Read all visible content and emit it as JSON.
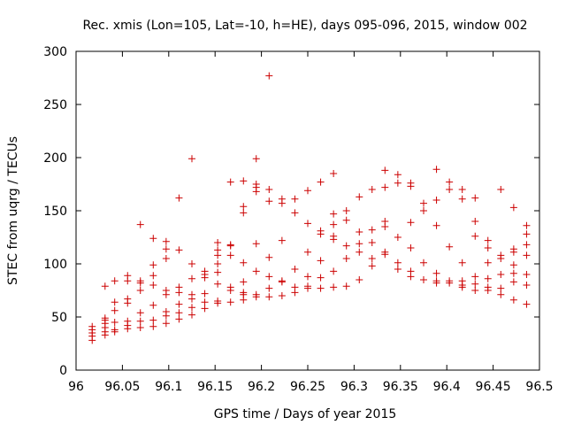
{
  "chart_data": {
    "type": "scatter",
    "title": "Rec. xmis (Lon=105, Lat=-10, h=HE), days 095-096, 2015, window 002",
    "xlabel": "GPS time / Days of year 2015",
    "ylabel": "STEC from uqrg / TECUs",
    "xlim": [
      96,
      96.5
    ],
    "ylim": [
      0,
      300
    ],
    "xticks": [
      96,
      96.05,
      96.1,
      96.15,
      96.2,
      96.25,
      96.3,
      96.35,
      96.4,
      96.45,
      96.5
    ],
    "xtick_labels": [
      "96",
      "96.05",
      "96.1",
      "96.15",
      "96.2",
      "96.25",
      "96.3",
      "96.35",
      "96.4",
      "96.45",
      "96.5"
    ],
    "yticks": [
      0,
      50,
      100,
      150,
      200,
      250,
      300
    ],
    "ytick_labels": [
      "0",
      "50",
      "100",
      "150",
      "200",
      "250",
      "300"
    ],
    "grid": false,
    "marker": "plus",
    "color": "#cc0000",
    "series": [
      {
        "points": [
          [
            96.0174,
            28
          ],
          [
            96.0174,
            32
          ],
          [
            96.0174,
            35
          ],
          [
            96.0174,
            38
          ],
          [
            96.0174,
            41
          ],
          [
            96.0313,
            33
          ],
          [
            96.0313,
            36
          ],
          [
            96.0313,
            40
          ],
          [
            96.0313,
            44
          ],
          [
            96.0313,
            47
          ],
          [
            96.0313,
            49
          ],
          [
            96.0313,
            79
          ],
          [
            96.0417,
            36
          ],
          [
            96.0417,
            38
          ],
          [
            96.0417,
            45
          ],
          [
            96.0417,
            56
          ],
          [
            96.0417,
            64
          ],
          [
            96.0417,
            84
          ],
          [
            96.0556,
            39
          ],
          [
            96.0556,
            42
          ],
          [
            96.0556,
            46
          ],
          [
            96.0556,
            63
          ],
          [
            96.0556,
            67
          ],
          [
            96.0556,
            84
          ],
          [
            96.0556,
            89
          ],
          [
            96.0694,
            40
          ],
          [
            96.0694,
            46
          ],
          [
            96.0694,
            54
          ],
          [
            96.0694,
            75
          ],
          [
            96.0694,
            82
          ],
          [
            96.0694,
            84
          ],
          [
            96.0694,
            137
          ],
          [
            96.0833,
            41
          ],
          [
            96.0833,
            47
          ],
          [
            96.0833,
            61
          ],
          [
            96.0833,
            80
          ],
          [
            96.0833,
            89
          ],
          [
            96.0833,
            99
          ],
          [
            96.0833,
            124
          ],
          [
            96.0972,
            44
          ],
          [
            96.0972,
            51
          ],
          [
            96.0972,
            55
          ],
          [
            96.0972,
            71
          ],
          [
            96.0972,
            75
          ],
          [
            96.0972,
            105
          ],
          [
            96.0972,
            114
          ],
          [
            96.0972,
            121
          ],
          [
            96.1111,
            48
          ],
          [
            96.1111,
            54
          ],
          [
            96.1111,
            62
          ],
          [
            96.1111,
            73
          ],
          [
            96.1111,
            78
          ],
          [
            96.1111,
            113
          ],
          [
            96.1111,
            162
          ],
          [
            96.125,
            52
          ],
          [
            96.125,
            59
          ],
          [
            96.125,
            67
          ],
          [
            96.125,
            71
          ],
          [
            96.125,
            86
          ],
          [
            96.125,
            100
          ],
          [
            96.125,
            199
          ],
          [
            96.1389,
            58
          ],
          [
            96.1389,
            64
          ],
          [
            96.1389,
            72
          ],
          [
            96.1389,
            87
          ],
          [
            96.1389,
            90
          ],
          [
            96.1389,
            93
          ],
          [
            96.1528,
            63
          ],
          [
            96.1528,
            65
          ],
          [
            96.1528,
            81
          ],
          [
            96.1528,
            92
          ],
          [
            96.1528,
            100
          ],
          [
            96.1528,
            108
          ],
          [
            96.1528,
            113
          ],
          [
            96.1528,
            120
          ],
          [
            96.1667,
            64
          ],
          [
            96.1667,
            75
          ],
          [
            96.1667,
            78
          ],
          [
            96.1667,
            108
          ],
          [
            96.1667,
            117
          ],
          [
            96.1667,
            118
          ],
          [
            96.1667,
            177
          ],
          [
            96.1806,
            66
          ],
          [
            96.1806,
            71
          ],
          [
            96.1806,
            73
          ],
          [
            96.1806,
            83
          ],
          [
            96.1806,
            101
          ],
          [
            96.1806,
            148
          ],
          [
            96.1806,
            154
          ],
          [
            96.1806,
            178
          ],
          [
            96.1944,
            69
          ],
          [
            96.1944,
            71
          ],
          [
            96.1944,
            93
          ],
          [
            96.1944,
            119
          ],
          [
            96.1944,
            168
          ],
          [
            96.1944,
            172
          ],
          [
            96.1944,
            175
          ],
          [
            96.1944,
            199
          ],
          [
            96.2083,
            69
          ],
          [
            96.2083,
            77
          ],
          [
            96.2083,
            88
          ],
          [
            96.2083,
            106
          ],
          [
            96.2083,
            159
          ],
          [
            96.2083,
            170
          ],
          [
            96.2083,
            277
          ],
          [
            96.2222,
            70
          ],
          [
            96.2222,
            83
          ],
          [
            96.2222,
            84
          ],
          [
            96.2222,
            122
          ],
          [
            96.2222,
            157
          ],
          [
            96.2222,
            161
          ],
          [
            96.2361,
            73
          ],
          [
            96.2361,
            78
          ],
          [
            96.2361,
            95
          ],
          [
            96.2361,
            148
          ],
          [
            96.2361,
            161
          ],
          [
            96.25,
            77
          ],
          [
            96.25,
            79
          ],
          [
            96.25,
            88
          ],
          [
            96.25,
            111
          ],
          [
            96.25,
            138
          ],
          [
            96.25,
            169
          ],
          [
            96.2639,
            77
          ],
          [
            96.2639,
            87
          ],
          [
            96.2639,
            103
          ],
          [
            96.2639,
            128
          ],
          [
            96.2639,
            131
          ],
          [
            96.2639,
            177
          ],
          [
            96.2778,
            78
          ],
          [
            96.2778,
            93
          ],
          [
            96.2778,
            123
          ],
          [
            96.2778,
            126
          ],
          [
            96.2778,
            137
          ],
          [
            96.2778,
            147
          ],
          [
            96.2778,
            185
          ],
          [
            96.2917,
            79
          ],
          [
            96.2917,
            105
          ],
          [
            96.2917,
            117
          ],
          [
            96.2917,
            141
          ],
          [
            96.2917,
            150
          ],
          [
            96.3056,
            85
          ],
          [
            96.3056,
            111
          ],
          [
            96.3056,
            119
          ],
          [
            96.3056,
            130
          ],
          [
            96.3056,
            163
          ],
          [
            96.3194,
            98
          ],
          [
            96.3194,
            105
          ],
          [
            96.3194,
            120
          ],
          [
            96.3194,
            132
          ],
          [
            96.3194,
            170
          ],
          [
            96.3333,
            109
          ],
          [
            96.3333,
            111
          ],
          [
            96.3333,
            135
          ],
          [
            96.3333,
            140
          ],
          [
            96.3333,
            172
          ],
          [
            96.3333,
            188
          ],
          [
            96.3472,
            95
          ],
          [
            96.3472,
            101
          ],
          [
            96.3472,
            125
          ],
          [
            96.3472,
            176
          ],
          [
            96.3472,
            184
          ],
          [
            96.3611,
            88
          ],
          [
            96.3611,
            93
          ],
          [
            96.3611,
            115
          ],
          [
            96.3611,
            139
          ],
          [
            96.3611,
            173
          ],
          [
            96.3611,
            176
          ],
          [
            96.375,
            85
          ],
          [
            96.375,
            101
          ],
          [
            96.375,
            150
          ],
          [
            96.375,
            157
          ],
          [
            96.3889,
            82
          ],
          [
            96.3889,
            84
          ],
          [
            96.3889,
            91
          ],
          [
            96.3889,
            136
          ],
          [
            96.3889,
            160
          ],
          [
            96.3889,
            189
          ],
          [
            96.4028,
            82
          ],
          [
            96.4028,
            84
          ],
          [
            96.4028,
            116
          ],
          [
            96.4028,
            170
          ],
          [
            96.4028,
            177
          ],
          [
            96.4167,
            78
          ],
          [
            96.4167,
            80
          ],
          [
            96.4167,
            84
          ],
          [
            96.4167,
            101
          ],
          [
            96.4167,
            161
          ],
          [
            96.4167,
            170
          ],
          [
            96.4306,
            75
          ],
          [
            96.4306,
            81
          ],
          [
            96.4306,
            88
          ],
          [
            96.4306,
            126
          ],
          [
            96.4306,
            140
          ],
          [
            96.4306,
            162
          ],
          [
            96.4444,
            75
          ],
          [
            96.4444,
            78
          ],
          [
            96.4444,
            86
          ],
          [
            96.4444,
            101
          ],
          [
            96.4444,
            115
          ],
          [
            96.4444,
            122
          ],
          [
            96.4583,
            71
          ],
          [
            96.4583,
            77
          ],
          [
            96.4583,
            90
          ],
          [
            96.4583,
            105
          ],
          [
            96.4583,
            108
          ],
          [
            96.4583,
            170
          ],
          [
            96.4722,
            66
          ],
          [
            96.4722,
            83
          ],
          [
            96.4722,
            91
          ],
          [
            96.4722,
            99
          ],
          [
            96.4722,
            111
          ],
          [
            96.4722,
            114
          ],
          [
            96.4722,
            153
          ],
          [
            96.4861,
            62
          ],
          [
            96.4861,
            80
          ],
          [
            96.4861,
            90
          ],
          [
            96.4861,
            108
          ],
          [
            96.4861,
            118
          ],
          [
            96.4861,
            128
          ],
          [
            96.4861,
            136
          ]
        ]
      }
    ]
  }
}
